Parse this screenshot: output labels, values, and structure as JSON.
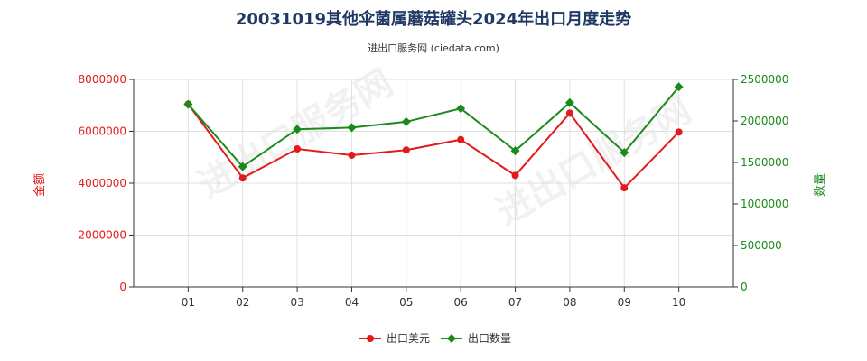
{
  "title": "20031019其他伞菌属蘑菇罐头2024年出口月度走势",
  "subtitle": "进出口服务网 (ciedata.com)",
  "watermark": "进出口服务网",
  "chart_data": {
    "type": "line",
    "categories": [
      "01",
      "02",
      "03",
      "04",
      "05",
      "06",
      "07",
      "08",
      "09",
      "10"
    ],
    "ylabel_left": "金额",
    "ylabel_right": "数量",
    "ylim_left": [
      0,
      8000000
    ],
    "ylim_right": [
      0,
      2500000
    ],
    "yticks_left": [
      "0",
      "2000000",
      "4000000",
      "6000000",
      "8000000"
    ],
    "yticks_right": [
      "0",
      "500000",
      "1000000",
      "1500000",
      "2000000",
      "2500000"
    ],
    "grid": true,
    "legend_position": "bottom",
    "series": [
      {
        "name": "出口美元",
        "axis": "left",
        "color": "#e31a1c",
        "values": [
          7050000,
          4200000,
          5320000,
          5080000,
          5280000,
          5680000,
          4300000,
          6700000,
          3820000,
          5970000
        ]
      },
      {
        "name": "出口数量",
        "axis": "right",
        "color": "#1a8a1a",
        "values": [
          2200000,
          1450000,
          1900000,
          1920000,
          1990000,
          2150000,
          1640000,
          2220000,
          1620000,
          2410000
        ]
      }
    ]
  }
}
